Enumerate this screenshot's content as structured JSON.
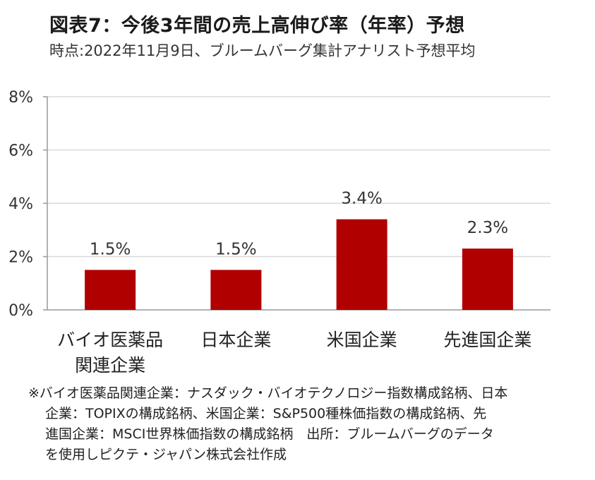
{
  "title": "図表7：今後3年間の売上高伸び率（年率）予想",
  "subtitle": "時点:2022年11月9日、ブルームバーグ集計アナリスト予想平均",
  "chart_data": {
    "type": "bar",
    "categories": [
      [
        "バイオ医薬品",
        "関連企業"
      ],
      [
        "日本企業"
      ],
      [
        "米国企業"
      ],
      [
        "先進国企業"
      ]
    ],
    "values": [
      1.5,
      1.5,
      3.4,
      2.3
    ],
    "value_labels": [
      "1.5%",
      "1.5%",
      "3.4%",
      "2.3%"
    ],
    "yticks": [
      "0%",
      "2%",
      "4%",
      "6%",
      "8%"
    ],
    "ylim": [
      0,
      8
    ],
    "grid": true,
    "bar_color": "#b00000",
    "grid_color": "#d9d9d9",
    "axis_color": "#999999"
  },
  "note": [
    "※バイオ医薬品関連企業：ナスダック・バイオテクノロジー指数構成銘柄、日本",
    "企業：TOPIXの構成銘柄、米国企業：S&P500種株価指数の構成銘柄、先",
    "進国企業：MSCI世界株価指数の構成銘柄　出所：ブルームバーグのデータ",
    "を使用しピクテ・ジャパン株式会社作成"
  ]
}
